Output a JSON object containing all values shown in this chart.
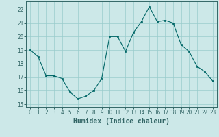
{
  "x": [
    0,
    1,
    2,
    3,
    4,
    5,
    6,
    7,
    8,
    9,
    10,
    11,
    12,
    13,
    14,
    15,
    16,
    17,
    18,
    19,
    20,
    21,
    22,
    23
  ],
  "y": [
    19.0,
    18.5,
    17.1,
    17.1,
    16.9,
    15.9,
    15.4,
    15.6,
    16.0,
    16.9,
    20.0,
    20.0,
    18.9,
    20.3,
    21.1,
    22.2,
    21.1,
    21.2,
    21.0,
    19.4,
    18.9,
    17.8,
    17.4,
    16.7
  ],
  "bg_color": "#cce8e8",
  "grid_color": "#99cccc",
  "line_color": "#006666",
  "marker_color": "#006666",
  "xlabel": "Humidex (Indice chaleur)",
  "xlim": [
    -0.5,
    23.5
  ],
  "ylim": [
    14.8,
    22.6
  ],
  "yticks": [
    15,
    16,
    17,
    18,
    19,
    20,
    21,
    22
  ],
  "xticks": [
    0,
    1,
    2,
    3,
    4,
    5,
    6,
    7,
    8,
    9,
    10,
    11,
    12,
    13,
    14,
    15,
    16,
    17,
    18,
    19,
    20,
    21,
    22,
    23
  ],
  "tick_fontsize": 5.5,
  "xlabel_fontsize": 7.0,
  "spine_color": "#336666"
}
